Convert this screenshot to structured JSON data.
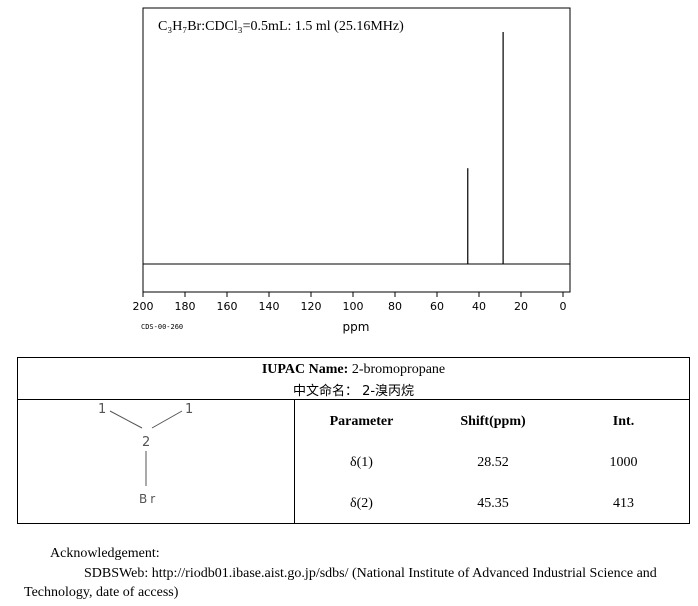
{
  "chart_data": {
    "type": "line",
    "title": "C₃H₇Br:CDCl₃=0.5mL: 1.5 ml (25.16MHz)",
    "xlabel": "ppm",
    "ylabel": "",
    "xlim": [
      200,
      0
    ],
    "x_ticks": [
      200,
      180,
      160,
      140,
      120,
      100,
      80,
      60,
      40,
      20,
      0
    ],
    "x_tick_labels": [
      "200",
      "180",
      "160",
      "140",
      "120",
      "100",
      "80",
      "60",
      "40",
      "20",
      "0"
    ],
    "code": "CDS-00-260",
    "ylim": [
      0,
      1000
    ],
    "grid": false,
    "peaks": [
      {
        "ppm": 28.52,
        "intensity": 1000
      },
      {
        "ppm": 45.35,
        "intensity": 413
      }
    ]
  },
  "compound": {
    "iupac_label": "IUPAC Name:",
    "iupac_value": "2-bromopropane",
    "chinese_label": "中文命名：",
    "chinese_value": "2-溴丙烷"
  },
  "structure": {
    "atom_left": "1",
    "atom_right": "1",
    "atom_center": "2",
    "atom_bottom": "Br"
  },
  "table": {
    "headers": [
      "Parameter",
      "Shift(ppm)",
      "Int."
    ],
    "rows": [
      {
        "param": "δ(1)",
        "shift": "28.52",
        "int": "1000"
      },
      {
        "param": "δ(2)",
        "shift": "45.35",
        "int": "413"
      }
    ]
  },
  "acknowledgement": {
    "heading": "Acknowledgement:",
    "line1": "SDBSWeb: http://riodb01.ibase.aist.go.jp/sdbs/ (National Institute of Advanced Industrial Science and",
    "line2": "Technology, date of access)"
  }
}
